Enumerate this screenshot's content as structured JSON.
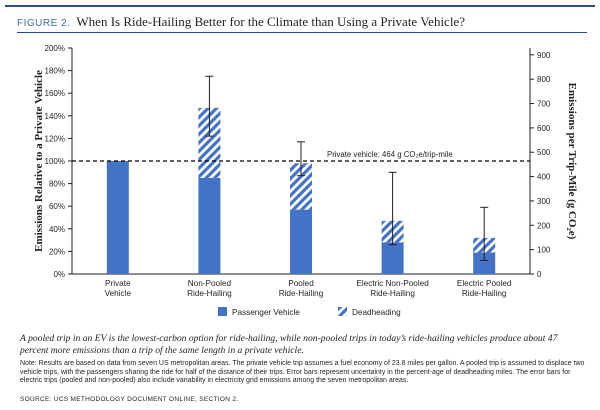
{
  "header": {
    "figure_label": "FIGURE 2.",
    "title": "When Is Ride-Hailing Better for the Climate than Using a Private Vehicle?"
  },
  "colors": {
    "accent": "#2b4f8e",
    "bar_solid": "#4472c4",
    "bar_hatch": "#4472c4",
    "reference_line": "#000000"
  },
  "chart_data": {
    "type": "bar",
    "stacked": true,
    "categories": [
      [
        "Private",
        "Vehicle"
      ],
      [
        "Non-Pooled",
        "Ride-Hailing"
      ],
      [
        "Pooled",
        "Ride-Hailing"
      ],
      [
        "Electric Non-Pooled",
        "Ride-Hailing"
      ],
      [
        "Electric Pooled",
        "Ride-Hailing"
      ]
    ],
    "series": [
      {
        "name": "Passenger Vehicle",
        "pattern": "solid",
        "values": [
          100,
          85,
          57,
          28,
          19
        ]
      },
      {
        "name": "Deadheading",
        "pattern": "hatch",
        "values": [
          0,
          62,
          41,
          19,
          13
        ]
      }
    ],
    "error_bars": [
      null,
      {
        "low": 122,
        "high": 175
      },
      {
        "low": 87,
        "high": 117
      },
      {
        "low": 26,
        "high": 90
      },
      {
        "low": 12,
        "high": 59
      }
    ],
    "ylabel_left": "Emissions Relative to a Private Vehicle",
    "ylim_left": [
      0,
      200
    ],
    "yticks_left": [
      "0%",
      "20%",
      "40%",
      "60%",
      "80%",
      "100%",
      "120%",
      "140%",
      "160%",
      "180%",
      "200%"
    ],
    "ylabel_right": "Emissions per Trip-Mile (g CO₂e)",
    "ylim_right": [
      0,
      928
    ],
    "yticks_right": [
      0,
      100,
      200,
      300,
      400,
      500,
      600,
      700,
      800,
      900
    ],
    "reference_line": {
      "value": 100,
      "label": "Private vehicle: 464 g CO₂e/trip-mile",
      "style": "dashed"
    },
    "legend": {
      "placement": "bottom"
    },
    "grid": false
  },
  "caption": "A pooled trip in an EV is the lowest-carbon option for ride-hailing, while non-pooled trips in today’s ride-hailing vehicles produce about 47 percent more emissions than a trip of the same length in a private vehicle.",
  "note": "Note: Results are based on data from seven US metropolitan areas. The private vehicle trip assumes a fuel economy of 23.8 miles per gallon. A pooled trip is assumed to displace two vehicle trips, with the passengers sharing the ride for half of the distance of their trips. Error bars represent uncertainty in the percent-age of deadheading miles. The error bars for electric trips (pooled and non-pooled) also include variability in electricity grid emissions among the seven metropolitan areas.",
  "source": "SOURCE: UCS METHODOLOGY DOCUMENT ONLINE, SECTION 2."
}
